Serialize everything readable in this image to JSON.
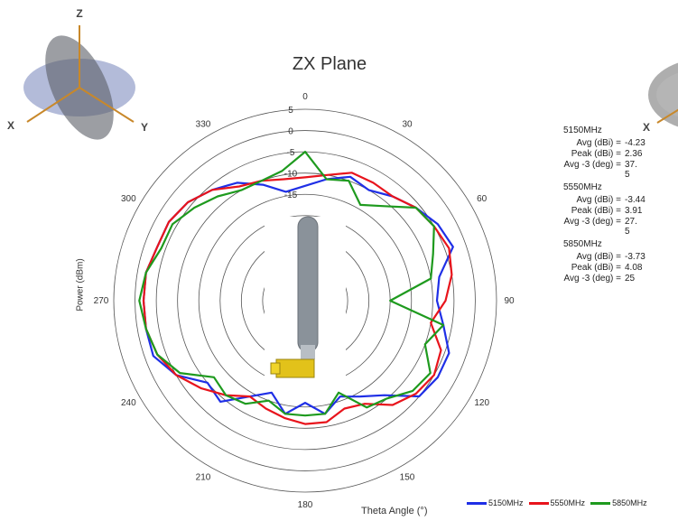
{
  "chart_data": {
    "type": "line",
    "subtype": "polar",
    "title": "ZX Plane",
    "xlabel": "Theta  Angle (°)",
    "ylabel": "Power (dBm)",
    "angle_ticks": [
      0,
      30,
      60,
      90,
      120,
      150,
      180,
      210,
      240,
      270,
      300,
      330
    ],
    "radial_ticks": [
      5,
      0,
      -5,
      -10,
      -15
    ],
    "rlim": [
      -40,
      5
    ],
    "grid": true,
    "legend_position": "bottom-right",
    "theta": [
      0,
      10,
      20,
      30,
      40,
      50,
      60,
      70,
      80,
      90,
      100,
      110,
      120,
      130,
      140,
      150,
      160,
      170,
      180,
      190,
      200,
      210,
      220,
      230,
      240,
      250,
      260,
      270,
      280,
      290,
      300,
      310,
      320,
      330,
      340,
      350
    ],
    "series": [
      {
        "name": "5150MHz",
        "color": "#1f2fe6",
        "values": [
          -13,
          -11,
          -9,
          -10,
          -8,
          -6,
          -4,
          -3,
          -8,
          -9,
          -7,
          -4,
          -4,
          -5,
          -11,
          -14,
          -16,
          -13,
          -16,
          -13,
          -17,
          -14,
          -9,
          -10,
          -5,
          -2,
          -2,
          -2,
          -2,
          -3,
          -3,
          -4,
          -6,
          -8,
          -11,
          -14
        ]
      },
      {
        "name": "5550MHz",
        "color": "#e8141c",
        "values": [
          -11,
          -10,
          -8,
          -8,
          -8,
          -6,
          -5,
          -4,
          -5,
          -7,
          -10,
          -6,
          -5,
          -6,
          -8,
          -12,
          -13,
          -11,
          -11,
          -12,
          -13,
          -14,
          -11,
          -8,
          -5,
          -3,
          -2,
          -2,
          -2,
          -3,
          -3,
          -4,
          -6,
          -9,
          -10,
          -11
        ]
      },
      {
        "name": "5850MHz",
        "color": "#1e9a1e",
        "values": [
          -5,
          -11,
          -10,
          -14,
          -11,
          -6,
          -5,
          -8,
          -10,
          -20,
          -7,
          -10,
          -6,
          -7,
          -10,
          -11,
          -17,
          -13,
          -13,
          -13,
          -15,
          -12,
          -11,
          -12,
          -6,
          -3,
          -2,
          -1,
          -2,
          -4,
          -4,
          -6,
          -8,
          -10,
          -10,
          -9
        ]
      }
    ]
  },
  "stats": [
    {
      "freq": "5150MHz",
      "avg_label": "Avg (dBi) =",
      "avg": "-4.23",
      "peak_label": "Peak (dBi) =",
      "peak": "2.36",
      "avg3_label": "Avg -3 (deg) =",
      "avg3": "37.",
      "avg3_wrap": "5"
    },
    {
      "freq": "5550MHz",
      "avg_label": "Avg (dBi) =",
      "avg": "-3.44",
      "peak_label": "Peak (dBi) =",
      "peak": "3.91",
      "avg3_label": "Avg -3 (deg) =",
      "avg3": "27.",
      "avg3_wrap": "5"
    },
    {
      "freq": "5850MHz",
      "avg_label": "Avg (dBi) =",
      "avg": "-3.73",
      "peak_label": "Peak (dBi) =",
      "peak": "4.08",
      "avg3_label": "Avg -3 (deg) =",
      "avg3": "25",
      "avg3_wrap": ""
    }
  ],
  "axis_icon_left": {
    "z": "Z",
    "x": "X",
    "y": "Y"
  },
  "axis_icon_right": {
    "x": "X"
  },
  "antenna_icon": "antenna-image",
  "colors": {
    "grid": "#888888",
    "background": "#ffffff"
  }
}
